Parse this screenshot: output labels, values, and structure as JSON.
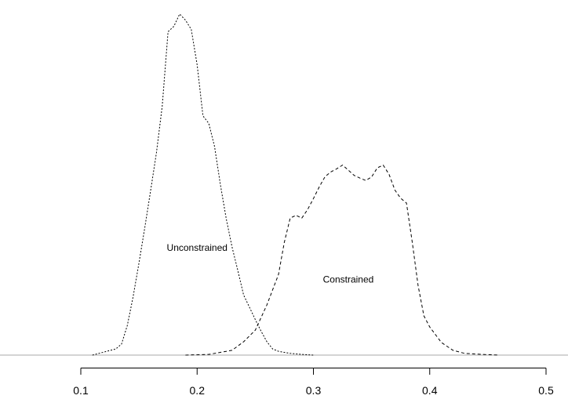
{
  "chart_data": {
    "type": "line",
    "title": "",
    "xlabel": "",
    "ylabel": "",
    "xlim": [
      0.1,
      0.5
    ],
    "ylim": [
      0,
      1
    ],
    "x_ticks": [
      0.1,
      0.2,
      0.3,
      0.4,
      0.5
    ],
    "x_tick_labels": [
      "0.1",
      "0.2",
      "0.3",
      "0.4",
      "0.5"
    ],
    "grid": false,
    "legend": "none",
    "series": [
      {
        "name": "Unconstrained",
        "line_style": "dotted",
        "points": [
          [
            0.11,
            0.0
          ],
          [
            0.12,
            0.009
          ],
          [
            0.13,
            0.018
          ],
          [
            0.135,
            0.032
          ],
          [
            0.14,
            0.087
          ],
          [
            0.145,
            0.171
          ],
          [
            0.15,
            0.269
          ],
          [
            0.155,
            0.372
          ],
          [
            0.16,
            0.48
          ],
          [
            0.165,
            0.592
          ],
          [
            0.17,
            0.729
          ],
          [
            0.175,
            0.946
          ],
          [
            0.18,
            0.962
          ],
          [
            0.185,
            0.998
          ],
          [
            0.19,
            0.98
          ],
          [
            0.195,
            0.953
          ],
          [
            0.2,
            0.849
          ],
          [
            0.205,
            0.7
          ],
          [
            0.21,
            0.678
          ],
          [
            0.215,
            0.61
          ],
          [
            0.22,
            0.499
          ],
          [
            0.225,
            0.4
          ],
          [
            0.23,
            0.317
          ],
          [
            0.235,
            0.248
          ],
          [
            0.24,
            0.176
          ],
          [
            0.245,
            0.14
          ],
          [
            0.25,
            0.104
          ],
          [
            0.255,
            0.07
          ],
          [
            0.26,
            0.039
          ],
          [
            0.265,
            0.018
          ],
          [
            0.27,
            0.011
          ],
          [
            0.28,
            0.005
          ],
          [
            0.29,
            0.002
          ],
          [
            0.3,
            0.0
          ]
        ]
      },
      {
        "name": "Constrained",
        "line_style": "dashed",
        "points": [
          [
            0.19,
            0.0
          ],
          [
            0.21,
            0.002
          ],
          [
            0.23,
            0.014
          ],
          [
            0.24,
            0.039
          ],
          [
            0.25,
            0.073
          ],
          [
            0.26,
            0.147
          ],
          [
            0.27,
            0.236
          ],
          [
            0.275,
            0.33
          ],
          [
            0.28,
            0.401
          ],
          [
            0.285,
            0.409
          ],
          [
            0.29,
            0.401
          ],
          [
            0.295,
            0.426
          ],
          [
            0.3,
            0.458
          ],
          [
            0.305,
            0.492
          ],
          [
            0.31,
            0.522
          ],
          [
            0.315,
            0.536
          ],
          [
            0.32,
            0.545
          ],
          [
            0.325,
            0.556
          ],
          [
            0.33,
            0.541
          ],
          [
            0.335,
            0.526
          ],
          [
            0.34,
            0.518
          ],
          [
            0.345,
            0.511
          ],
          [
            0.35,
            0.521
          ],
          [
            0.355,
            0.548
          ],
          [
            0.36,
            0.556
          ],
          [
            0.365,
            0.529
          ],
          [
            0.37,
            0.483
          ],
          [
            0.375,
            0.459
          ],
          [
            0.38,
            0.445
          ],
          [
            0.385,
            0.33
          ],
          [
            0.39,
            0.204
          ],
          [
            0.395,
            0.115
          ],
          [
            0.4,
            0.082
          ],
          [
            0.41,
            0.037
          ],
          [
            0.42,
            0.014
          ],
          [
            0.43,
            0.005
          ],
          [
            0.445,
            0.002
          ],
          [
            0.46,
            0.0
          ]
        ]
      }
    ],
    "annotations": [
      {
        "text": "Unconstrained",
        "x": 0.2,
        "y": 0.305
      },
      {
        "text": "Constrained",
        "x": 0.33,
        "y": 0.212
      }
    ]
  }
}
